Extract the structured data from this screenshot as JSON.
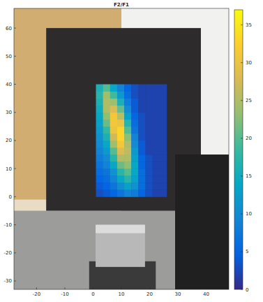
{
  "chart_data": {
    "type": "heatmap",
    "title": "F2/F1",
    "xlim": [
      -28,
      48
    ],
    "ylim": [
      -33,
      67
    ],
    "xticks": [
      -20,
      -10,
      0,
      10,
      20,
      30,
      40
    ],
    "yticks": [
      -30,
      -20,
      -10,
      0,
      10,
      20,
      30,
      40,
      50,
      60
    ],
    "x": [
      2.25,
      4.75,
      7.25,
      9.75,
      12.25,
      14.75,
      17.25,
      19.75,
      22.25,
      24.75
    ],
    "y": [
      1.25,
      3.75,
      6.25,
      8.75,
      11.25,
      13.75,
      16.25,
      18.75,
      21.25,
      23.75,
      26.25,
      28.75,
      31.25,
      33.75,
      36.25,
      38.75
    ],
    "cells": [
      [
        3,
        4,
        5,
        7,
        9,
        8,
        5,
        3,
        2,
        2
      ],
      [
        4,
        5,
        7,
        10,
        13,
        11,
        6,
        3,
        2,
        2
      ],
      [
        5,
        6,
        9,
        14,
        17,
        13,
        6,
        3,
        2,
        2
      ],
      [
        6,
        7,
        11,
        17,
        20,
        14,
        6,
        3,
        2,
        2
      ],
      [
        7,
        9,
        14,
        21,
        23,
        14,
        5,
        3,
        2,
        2
      ],
      [
        8,
        10,
        17,
        25,
        25,
        13,
        5,
        3,
        2,
        2
      ],
      [
        9,
        12,
        20,
        28,
        26,
        12,
        4,
        2,
        2,
        2
      ],
      [
        10,
        14,
        24,
        31,
        25,
        10,
        4,
        2,
        2,
        2
      ],
      [
        11,
        16,
        27,
        33,
        23,
        9,
        3,
        2,
        2,
        2
      ],
      [
        12,
        18,
        30,
        33,
        20,
        7,
        3,
        2,
        2,
        2
      ],
      [
        13,
        21,
        31,
        30,
        17,
        6,
        3,
        2,
        2,
        2
      ],
      [
        14,
        23,
        31,
        26,
        13,
        5,
        3,
        2,
        2,
        2
      ],
      [
        15,
        25,
        28,
        21,
        10,
        4,
        2,
        2,
        2,
        2
      ],
      [
        16,
        25,
        24,
        16,
        8,
        4,
        2,
        2,
        2,
        2
      ],
      [
        17,
        24,
        19,
        12,
        6,
        3,
        2,
        2,
        2,
        2
      ],
      [
        16,
        20,
        14,
        9,
        5,
        3,
        2,
        2,
        2,
        2
      ]
    ],
    "colorbar": {
      "range": [
        0,
        37
      ],
      "ticks": [
        0,
        5,
        10,
        15,
        20,
        25,
        30,
        35
      ]
    }
  }
}
